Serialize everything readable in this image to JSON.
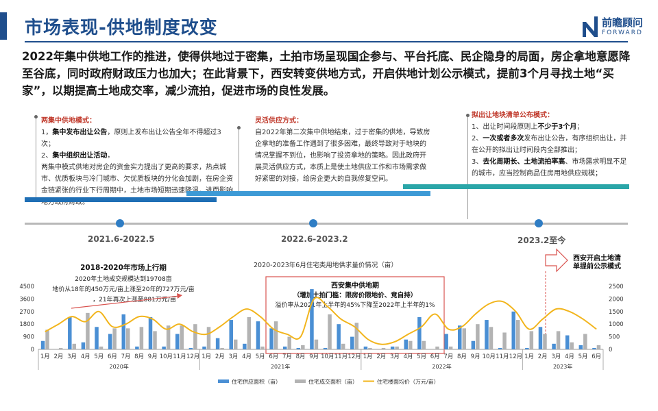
{
  "header": {
    "title": "市场表现-供地制度改变",
    "logo_cn": "前瞻顾问",
    "logo_en": "FORWARD"
  },
  "headline": "2022年集中供地工作的推进，使得供地过于密集，土拍市场呈现国企参与、平台托底、民企隐身的局面，房企拿地意愿降至谷底，同时政府财政压力也加大；在此背景下，西安转变供地方式，开启供地计划公示模式，提前3个月寻找土地“买家”，以期提高土地成交率，减少流拍，促进市场的良性发展。",
  "phases": [
    {
      "head": "两集中供地模式：",
      "lines": [
        [
          "1，",
          "集中发布出让公告",
          "，原则上发布出让公告全年不得超过3次；"
        ],
        [
          "2、",
          "集中组织出让活动",
          "，"
        ],
        [
          "两集中模式供地对房企的资金实力提出了更高的要求，热点城市、优质板块与冷门城市、欠优质板块的分化会加剧，在房企资金链紧张的行业下行周期中，土地市场短期迅速降温，进而影响地方政府财政。",
          "",
          ""
        ]
      ],
      "period": "2021.6-2022.5"
    },
    {
      "head": "灵活供应方式：",
      "body": "自2022年第二次集中供地结束，过于密集的供地，导致房企拿地的准备工作遇到了很多困难，最终导致对于地块的情况掌握不到位，也影响了投资拿地的策略。因此政府开展灵活供应方式，本质上是使土地供应工作和市场需求做好紧密的对接，给房企更大的自我修复空间。",
      "period": "2022.6-2023.2"
    },
    {
      "head": "拟出让地块清单公布模式：",
      "lines": [
        [
          "1、出让时间段原则上",
          "不少于3个月",
          "；"
        ],
        [
          "2、",
          "一次或者多次",
          "发布出让公告，有序组织出让，并在公开的拟出让时间段内全部推出；"
        ],
        [
          "3、",
          "去化周期长、土地流拍率高",
          "、市场露求明显不足的城市，应当控制商品住房用地供应规模；"
        ]
      ],
      "period": "2023.2至今"
    }
  ],
  "chart_annotations": {
    "left_title": "2018-2020年市场上行期",
    "left_line1": "2020年土地成交规模达到19708亩",
    "left_line2": "地价从18年的450万元/亩上涨至20年的727万元/亩",
    "left_line3": "，21年再次上涨至881万元/亩",
    "mid_title": "西安集中供地期",
    "mid_sub": "（增加土拍门槛：限房价限地价、竞自持）",
    "mid_line": "溢价率从2021年上半年的45%下降至2022年上半年的1%",
    "right_title": "西安开启土地清单提前公示模式"
  },
  "chart_data": {
    "type": "bar",
    "title": "2020-2023年6月住宅类用地供求量价情况（亩）",
    "x": [
      "1月",
      "2月",
      "3月",
      "4月",
      "5月",
      "6月",
      "7月",
      "8月",
      "9月",
      "10月",
      "11月",
      "12月",
      "1月",
      "2月",
      "3月",
      "4月",
      "5月",
      "6月",
      "7月",
      "8月",
      "9月",
      "10月",
      "11月",
      "12月",
      "1月",
      "2月",
      "3月",
      "4月",
      "5月",
      "6月",
      "7月",
      "8月",
      "9月",
      "10月",
      "11月",
      "12月",
      "1月",
      "2月",
      "3月",
      "4月",
      "5月",
      "6月"
    ],
    "years": [
      {
        "label": "2020年",
        "start": 0,
        "end": 11
      },
      {
        "label": "2021年",
        "start": 12,
        "end": 23
      },
      {
        "label": "2022年",
        "start": 24,
        "end": 35
      },
      {
        "label": "2023年",
        "start": 36,
        "end": 41
      }
    ],
    "y_left_ticks": [
      0,
      900,
      1800,
      2700,
      3600,
      4500
    ],
    "y_right_ticks": [
      0,
      500,
      1000,
      1500,
      2000,
      2500
    ],
    "ylim_left": [
      0,
      4500
    ],
    "ylim_right": [
      0,
      2500
    ],
    "series": [
      {
        "name": "住宅供应面积（亩）",
        "axis": "left",
        "color": "#4a8fd4",
        "values": [
          600,
          0,
          2300,
          500,
          1600,
          1100,
          2500,
          200,
          2300,
          200,
          1100,
          100,
          200,
          800,
          2100,
          400,
          2000,
          1500,
          200,
          100,
          4300,
          100,
          1800,
          900,
          200,
          0,
          200,
          700,
          2300,
          0,
          1100,
          1700,
          600,
          2100,
          100,
          2700,
          100,
          1600,
          400,
          1000,
          300,
          100
        ]
      },
      {
        "name": "住宅成交面积（亩）",
        "axis": "left",
        "color": "#b3b3b3",
        "values": [
          1400,
          100,
          400,
          2600,
          200,
          1500,
          1500,
          1600,
          1300,
          1700,
          1700,
          1800,
          1600,
          100,
          700,
          2300,
          200,
          2000,
          900,
          300,
          700,
          2500,
          400,
          1900,
          100,
          100,
          200,
          600,
          600,
          200,
          200,
          1500,
          1800,
          1600,
          1200,
          2100,
          1300,
          1100,
          1300,
          500,
          1100,
          300
        ]
      },
      {
        "name": "住宅楼面均价（万元/亩）",
        "axis": "right",
        "type": "line",
        "color": "#f2b51d",
        "values": [
          700,
          1000,
          1300,
          1100,
          1500,
          900,
          1000,
          1300,
          1200,
          800,
          1000,
          700,
          600,
          900,
          1300,
          1600,
          1300,
          800,
          600,
          500,
          2000,
          1700,
          1200,
          900,
          400,
          200,
          300,
          600,
          900,
          1400,
          800,
          900,
          1400,
          1800,
          1900,
          1500,
          800,
          1200,
          1600,
          1500,
          1200,
          800
        ]
      }
    ]
  }
}
